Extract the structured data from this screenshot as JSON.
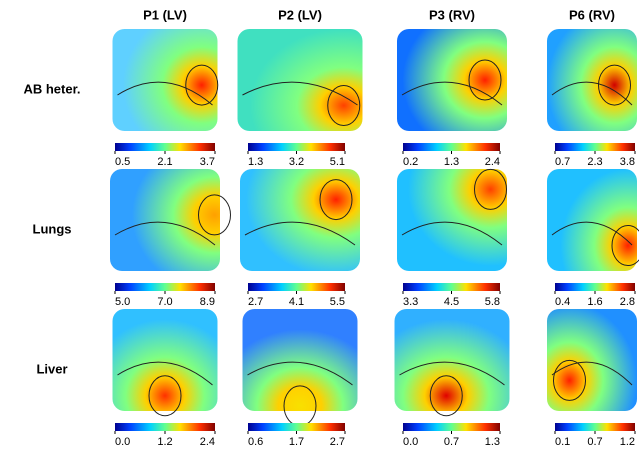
{
  "columns": [
    "P1 (LV)",
    "P2 (LV)",
    "P3 (RV)",
    "P6 (RV)"
  ],
  "rows": [
    {
      "label": "AB heter.",
      "colorbars": [
        [
          "0.5",
          "2.1",
          "3.7"
        ],
        [
          "1.3",
          "3.2",
          "5.1"
        ],
        [
          "0.2",
          "1.3",
          "2.4"
        ],
        [
          "0.7",
          "2.3",
          "3.8"
        ]
      ]
    },
    {
      "label": "Lungs",
      "colorbars": [
        [
          "5.0",
          "7.0",
          "8.9"
        ],
        [
          "2.7",
          "4.1",
          "5.5"
        ],
        [
          "3.3",
          "4.5",
          "5.8"
        ],
        [
          "0.4",
          "1.6",
          "2.8"
        ]
      ]
    },
    {
      "label": "Liver",
      "colorbars": [
        [
          "0.0",
          "1.2",
          "2.4"
        ],
        [
          "0.6",
          "1.7",
          "2.7"
        ],
        [
          "0.0",
          "0.7",
          "1.3"
        ],
        [
          "0.1",
          "0.7",
          "1.2"
        ]
      ]
    }
  ]
}
